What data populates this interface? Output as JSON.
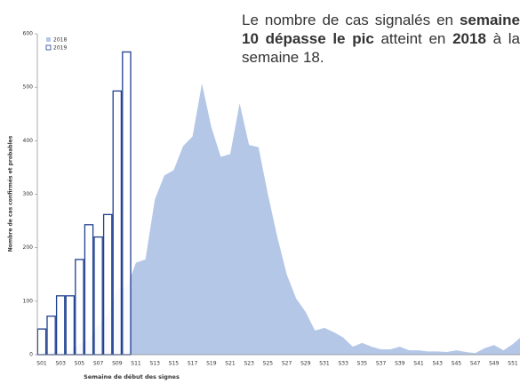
{
  "chart_data": {
    "type": "area-bar",
    "y_label": "Nombre de cas confirmés et probables",
    "x_label": "Semaine de début des signes",
    "categories": [
      "S01",
      null,
      "S03",
      null,
      "S05",
      null,
      "S07",
      null,
      "S09",
      null,
      "S11",
      null,
      "S13",
      null,
      "S15",
      null,
      "S17",
      null,
      "S19",
      null,
      "S21",
      null,
      "S23",
      null,
      "S25",
      null,
      "S27",
      null,
      "S29",
      null,
      "S31",
      null,
      "S33",
      null,
      "S35",
      null,
      "S37",
      null,
      "S39",
      null,
      "S41",
      null,
      "S43",
      null,
      "S45",
      null,
      "S47",
      null,
      "S49",
      null,
      "S51",
      null
    ],
    "series": [
      {
        "name": "2018",
        "kind": "area",
        "color": "#b4c7e7",
        "values": [
          5,
          5,
          5,
          8,
          20,
          28,
          55,
          75,
          125,
          125,
          172,
          178,
          290,
          335,
          345,
          390,
          408,
          507,
          425,
          370,
          375,
          470,
          392,
          388,
          300,
          220,
          150,
          105,
          80,
          45,
          50,
          42,
          32,
          15,
          22,
          15,
          10,
          10,
          15,
          8,
          8,
          6,
          6,
          5,
          8,
          5,
          3,
          12,
          18,
          8,
          20,
          35
        ]
      },
      {
        "name": "2019",
        "kind": "bar",
        "color": "#1f3f8f",
        "values": [
          48,
          72,
          110,
          110,
          178,
          243,
          220,
          262,
          493,
          566,
          null,
          null,
          null,
          null,
          null,
          null,
          null,
          null,
          null,
          null,
          null,
          null,
          null,
          null,
          null,
          null,
          null,
          null,
          null,
          null,
          null,
          null,
          null,
          null,
          null,
          null,
          null,
          null,
          null,
          null,
          null,
          null,
          null,
          null,
          null,
          null,
          null,
          null,
          null,
          null,
          null,
          null
        ]
      }
    ],
    "ylim": [
      0,
      600
    ],
    "yticks": [
      0,
      100,
      200,
      300,
      400,
      500,
      600
    ],
    "legend": "top-left"
  },
  "annotation": {
    "parts": [
      {
        "text": "Le nombre de cas signalés en ",
        "bold": false
      },
      {
        "text": "semaine 10 dépasse le pic",
        "bold": true
      },
      {
        "text": " atteint en ",
        "bold": false
      },
      {
        "text": "2018",
        "bold": true
      },
      {
        "text": " à la semaine 18.",
        "bold": false
      }
    ]
  }
}
